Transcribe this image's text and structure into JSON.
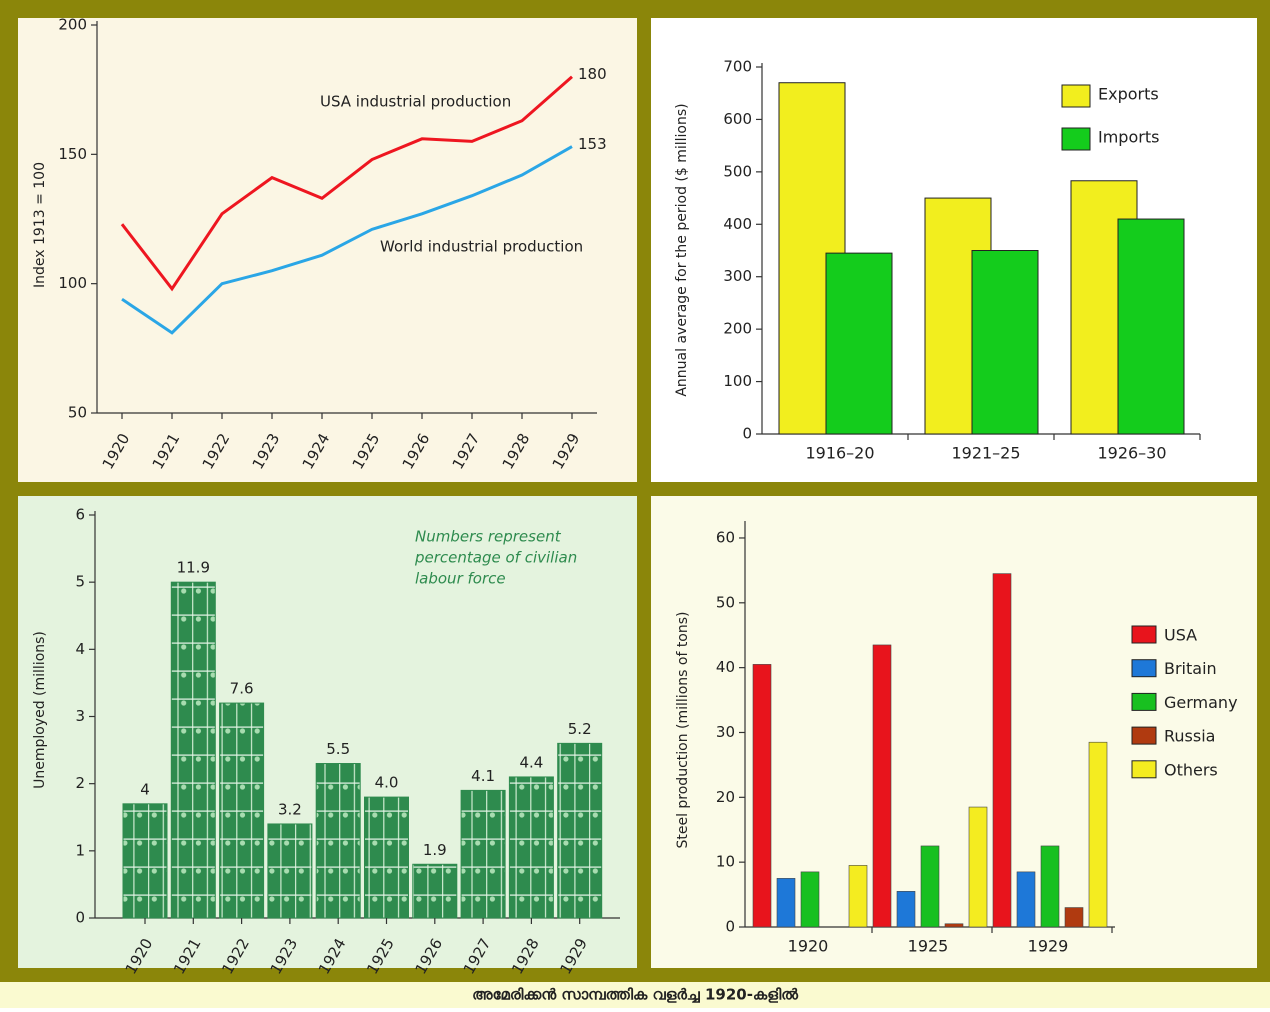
{
  "caption": "അമേരിക്കൻ സാമ്പത്തിക വളർച്ച 1920-കളിൽ",
  "chart_data": [
    {
      "type": "line",
      "y_label": "Index 1913 = 100",
      "categories": [
        "1920",
        "1921",
        "1922",
        "1923",
        "1924",
        "1925",
        "1926",
        "1927",
        "1928",
        "1929"
      ],
      "series": [
        {
          "name": "USA industrial production",
          "color": "#ee1620",
          "values": [
            123,
            98,
            127,
            141,
            133,
            148,
            156,
            155,
            163,
            180
          ]
        },
        {
          "name": "World industrial production",
          "color": "#2aa6e6",
          "values": [
            94,
            81,
            100,
            105,
            111,
            121,
            127,
            134,
            142,
            153
          ]
        }
      ],
      "ylim": [
        50,
        200
      ],
      "yticks": [
        50,
        100,
        150,
        200
      ]
    },
    {
      "type": "bar",
      "y_label": "Annual average for the period ($ millions)",
      "categories": [
        "1916–20",
        "1921–25",
        "1926–30"
      ],
      "series": [
        {
          "name": "Exports",
          "color": "#f2ee1e",
          "values": [
            670,
            450,
            483
          ]
        },
        {
          "name": "Imports",
          "color": "#14cc1c",
          "values": [
            345,
            350,
            410
          ]
        }
      ],
      "ylim": [
        0,
        700
      ],
      "yticks": [
        0,
        100,
        200,
        300,
        400,
        500,
        600,
        700
      ],
      "legend": "upper right"
    },
    {
      "type": "bar",
      "y_label": "Unemployed (millions)",
      "annotation": [
        "Numbers represent",
        "percentage of civilian",
        "labour force"
      ],
      "categories": [
        "1920",
        "1921",
        "1922",
        "1923",
        "1924",
        "1925",
        "1926",
        "1927",
        "1928",
        "1929"
      ],
      "values": [
        1.7,
        5.0,
        3.2,
        1.4,
        2.3,
        1.8,
        0.8,
        1.9,
        2.1,
        2.6
      ],
      "color": "#2e8b4e",
      "percentage_labels": [
        "4",
        "11.9",
        "7.6",
        "3.2",
        "5.5",
        "4.0",
        "1.9",
        "4.1",
        "4.4",
        "5.2"
      ],
      "ylim": [
        0,
        6
      ],
      "yticks": [
        0,
        1,
        2,
        3,
        4,
        5,
        6
      ]
    },
    {
      "type": "bar",
      "y_label": "Steel production (millions of tons)",
      "categories": [
        "1920",
        "1925",
        "1929"
      ],
      "series": [
        {
          "name": "USA",
          "color": "#e8141c",
          "values": [
            40.5,
            43.5,
            54.5
          ]
        },
        {
          "name": "Britain",
          "color": "#1e78d8",
          "values": [
            7.5,
            5.5,
            8.5
          ]
        },
        {
          "name": "Germany",
          "color": "#18c020",
          "values": [
            8.5,
            12.5,
            12.5
          ]
        },
        {
          "name": "Russia",
          "color": "#b03a10",
          "values": [
            null,
            0.5,
            3
          ]
        },
        {
          "name": "Others",
          "color": "#f4ec20",
          "values": [
            9.5,
            18.5,
            28.5
          ]
        }
      ],
      "ylim": [
        0,
        62
      ],
      "yticks": [
        0,
        10,
        20,
        30,
        40,
        50,
        60
      ],
      "legend": "right"
    }
  ]
}
